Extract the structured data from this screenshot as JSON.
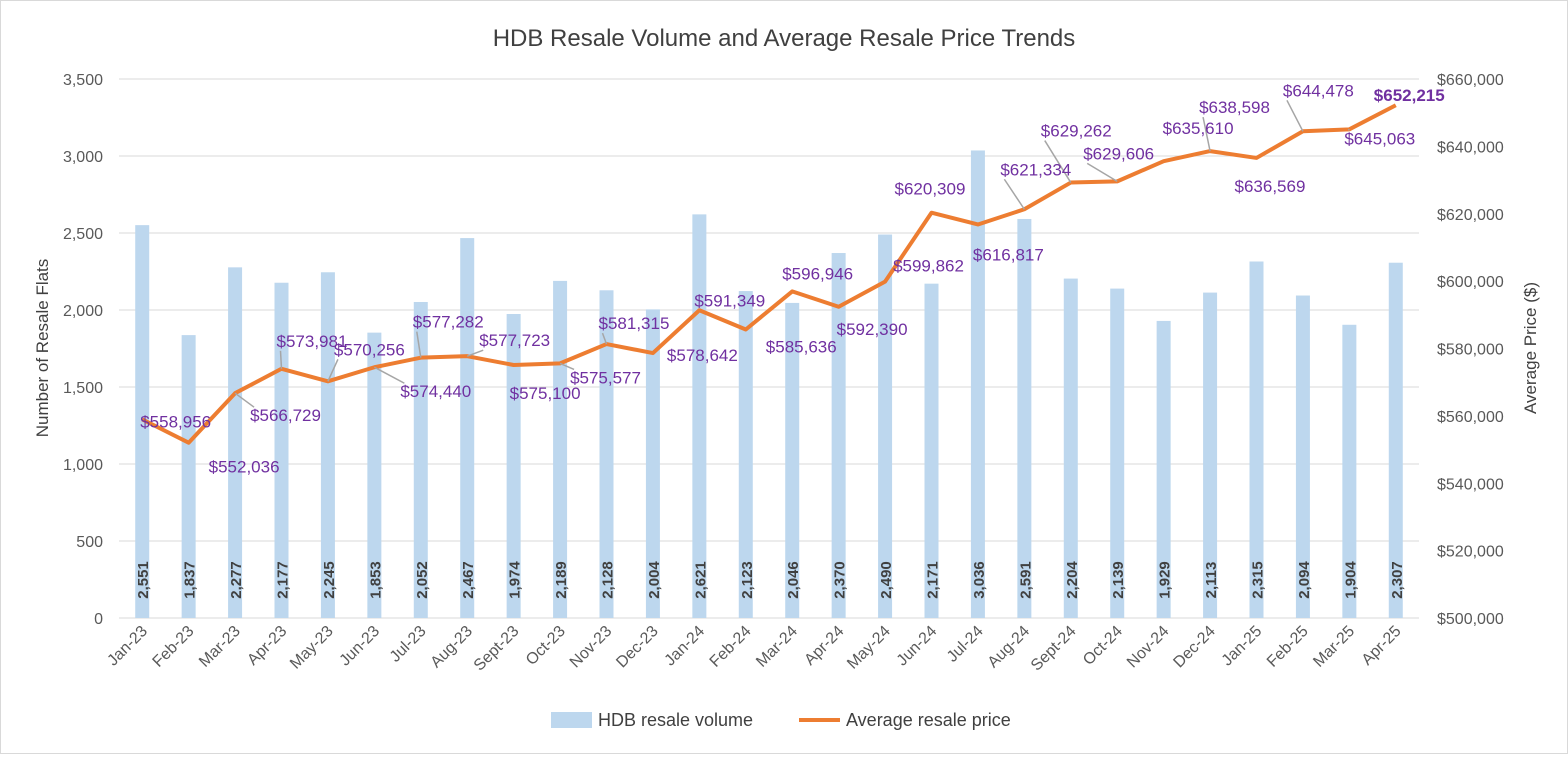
{
  "chart_data": {
    "type": "bar",
    "title": "HDB Resale Volume and Average Resale Price Trends",
    "ylabel": "Number of Resale Flats",
    "y2label": "Average Price ($)",
    "ylim": [
      0,
      3500
    ],
    "y2lim": [
      500000,
      660000
    ],
    "y_ticks": [
      "0",
      "500",
      "1,000",
      "1,500",
      "2,000",
      "2,500",
      "3,000",
      "3,500"
    ],
    "y2_ticks": [
      "$500,000",
      "$520,000",
      "$540,000",
      "$560,000",
      "$580,000",
      "$600,000",
      "$620,000",
      "$640,000",
      "$660,000"
    ],
    "grid": true,
    "legend_position": "bottom",
    "categories": [
      "Jan-23",
      "Feb-23",
      "Mar-23",
      "Apr-23",
      "May-23",
      "Jun-23",
      "Jul-23",
      "Aug-23",
      "Sept-23",
      "Oct-23",
      "Nov-23",
      "Dec-23",
      "Jan-24",
      "Feb-24",
      "Mar-24",
      "Apr-24",
      "May-24",
      "Jun-24",
      "Jul-24",
      "Aug-24",
      "Sept-24",
      "Oct-24",
      "Nov-24",
      "Dec-24",
      "Jan-25",
      "Feb-25",
      "Mar-25",
      "Apr-25"
    ],
    "series": [
      {
        "name": "HDB resale volume",
        "type": "bar",
        "axis": "left",
        "color": "#bdd7ee",
        "values": [
          2551,
          1837,
          2277,
          2177,
          2245,
          1853,
          2052,
          2467,
          1974,
          2189,
          2128,
          2004,
          2621,
          2123,
          2046,
          2370,
          2490,
          2171,
          3036,
          2591,
          2204,
          2139,
          1929,
          2113,
          2315,
          2094,
          1904,
          2307
        ],
        "labels": [
          "2,551",
          "1,837",
          "2,277",
          "2,177",
          "2,245",
          "1,853",
          "2,052",
          "2,467",
          "1,974",
          "2,189",
          "2,128",
          "2,004",
          "2,621",
          "2,123",
          "2,046",
          "2,370",
          "2,490",
          "2,171",
          "3,036",
          "2,591",
          "2,204",
          "2,139",
          "1,929",
          "2,113",
          "2,315",
          "2,094",
          "1,904",
          "2,307"
        ]
      },
      {
        "name": "Average resale price",
        "type": "line",
        "axis": "right",
        "color": "#ed7d31",
        "values": [
          558956,
          552036,
          566729,
          573981,
          570256,
          574440,
          577282,
          577723,
          575100,
          575577,
          581315,
          578642,
          591349,
          585636,
          596946,
          592390,
          599862,
          620309,
          616817,
          621334,
          629262,
          629606,
          635610,
          638598,
          636569,
          644478,
          645063,
          652215
        ],
        "labels": [
          "$558,956",
          "$552,036",
          "$566,729",
          "$573,981",
          "$570,256",
          "$574,440",
          "$577,282",
          "$577,723",
          "$575,100",
          "$575,577",
          "$581,315",
          "$578,642",
          "$591,349",
          "$585,636",
          "$596,946",
          "$592,390",
          "$599,862",
          "$620,309",
          "$616,817",
          "$621,334",
          "$629,262",
          "$629,606",
          "$635,610",
          "$638,598",
          "$636,569",
          "$644,478",
          "$645,063",
          "$652,215"
        ],
        "label_color": "#7030a0"
      }
    ]
  }
}
